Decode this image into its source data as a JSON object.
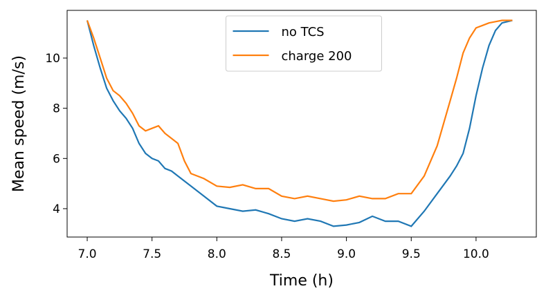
{
  "chart_data": {
    "type": "line",
    "x_label": "Time (h)",
    "y_label": "Mean speed (m/s)",
    "x": [
      7.0,
      7.05,
      7.1,
      7.15,
      7.2,
      7.25,
      7.3,
      7.35,
      7.4,
      7.45,
      7.5,
      7.55,
      7.6,
      7.65,
      7.7,
      7.75,
      7.8,
      7.9,
      8.0,
      8.1,
      8.2,
      8.3,
      8.4,
      8.5,
      8.6,
      8.7,
      8.8,
      8.9,
      9.0,
      9.1,
      9.2,
      9.3,
      9.4,
      9.5,
      9.6,
      9.7,
      9.8,
      9.85,
      9.9,
      9.95,
      10.0,
      10.05,
      10.1,
      10.15,
      10.2,
      10.28
    ],
    "series": [
      {
        "name": "no TCS",
        "color": "#1f77b4",
        "values": [
          11.5,
          10.5,
          9.6,
          8.8,
          8.3,
          7.9,
          7.6,
          7.2,
          6.6,
          6.2,
          6.0,
          5.9,
          5.6,
          5.5,
          5.3,
          5.1,
          4.9,
          4.5,
          4.1,
          4.0,
          3.9,
          3.95,
          3.8,
          3.6,
          3.5,
          3.6,
          3.5,
          3.3,
          3.35,
          3.45,
          3.7,
          3.5,
          3.5,
          3.3,
          3.9,
          4.6,
          5.3,
          5.7,
          6.2,
          7.2,
          8.5,
          9.6,
          10.5,
          11.1,
          11.4,
          11.5
        ]
      },
      {
        "name": "charge 200",
        "color": "#ff7f0e",
        "values": [
          11.5,
          10.8,
          10.0,
          9.2,
          8.7,
          8.5,
          8.2,
          7.8,
          7.3,
          7.1,
          7.2,
          7.3,
          7.0,
          6.8,
          6.6,
          5.9,
          5.4,
          5.2,
          4.9,
          4.85,
          4.95,
          4.8,
          4.8,
          4.5,
          4.4,
          4.5,
          4.4,
          4.3,
          4.35,
          4.5,
          4.4,
          4.4,
          4.6,
          4.6,
          5.3,
          6.5,
          8.3,
          9.2,
          10.2,
          10.8,
          11.2,
          11.3,
          11.4,
          11.45,
          11.5,
          11.5
        ]
      }
    ],
    "xlim": [
      6.845,
      10.465
    ],
    "ylim": [
      2.87,
      11.9
    ],
    "xticks": [
      {
        "value": 7.0,
        "label": "7.0"
      },
      {
        "value": 7.5,
        "label": "7.5"
      },
      {
        "value": 8.0,
        "label": "8.0"
      },
      {
        "value": 8.5,
        "label": "8.5"
      },
      {
        "value": 9.0,
        "label": "9.0"
      },
      {
        "value": 9.5,
        "label": "9.5"
      },
      {
        "value": 10.0,
        "label": "10.0"
      }
    ],
    "yticks": [
      4,
      6,
      8,
      10
    ],
    "legend": "upper center"
  }
}
